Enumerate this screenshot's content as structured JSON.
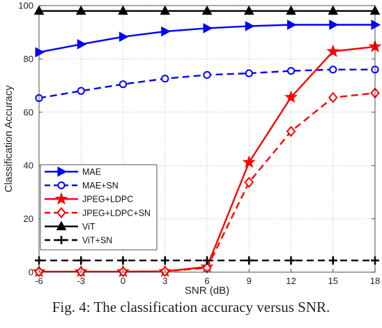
{
  "chart_data": {
    "type": "line",
    "xlabel": "SNR (dB)",
    "ylabel": "Classification Accuracy",
    "x": [
      -6,
      -3,
      0,
      3,
      6,
      9,
      12,
      15,
      18
    ],
    "xlim": [
      -6,
      18
    ],
    "ylim": [
      0,
      100
    ],
    "xticks": [
      "-6",
      "-3",
      "0",
      "3",
      "6",
      "9",
      "12",
      "15",
      "18"
    ],
    "yticks": [
      "0",
      "20",
      "40",
      "60",
      "80",
      "100"
    ],
    "grid": true,
    "legend_position": "bottom-left",
    "series": [
      {
        "name": "MAE",
        "color": "#0000ff",
        "dash": "solid",
        "marker": "triangle-right",
        "values": [
          82.5,
          85.5,
          88.3,
          90.3,
          91.5,
          92.3,
          92.8,
          92.8,
          92.8
        ]
      },
      {
        "name": "MAE+SN",
        "color": "#0000ff",
        "dash": "dashed",
        "marker": "circle",
        "values": [
          65.3,
          68.0,
          70.5,
          72.6,
          74.0,
          74.6,
          75.5,
          76.0,
          76.0
        ]
      },
      {
        "name": "JPEG+LDPC",
        "color": "#ff0000",
        "dash": "solid",
        "marker": "star",
        "values": [
          0.2,
          0.2,
          0.2,
          0.3,
          2.0,
          41.2,
          65.6,
          82.8,
          84.6
        ]
      },
      {
        "name": "JPEG+LDPC+SN",
        "color": "#ff0000",
        "dash": "dashed",
        "marker": "diamond",
        "values": [
          0.2,
          0.2,
          0.2,
          0.3,
          1.6,
          33.7,
          52.8,
          65.5,
          67.2
        ]
      },
      {
        "name": "ViT",
        "color": "#000000",
        "dash": "solid",
        "marker": "triangle-up",
        "values": [
          98.0,
          98.0,
          98.0,
          98.0,
          98.0,
          98.0,
          98.0,
          98.0,
          98.0
        ]
      },
      {
        "name": "ViT+SN",
        "color": "#000000",
        "dash": "dashed",
        "marker": "plus",
        "values": [
          4.4,
          4.4,
          4.4,
          4.4,
          4.4,
          4.4,
          4.4,
          4.4,
          4.4
        ]
      }
    ]
  },
  "caption": "Fig. 4: The classification accuracy versus SNR."
}
